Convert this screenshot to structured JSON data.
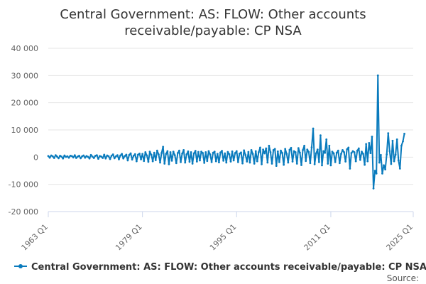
{
  "chart_data": {
    "type": "line",
    "title_lines": [
      "Central Government: AS: FLOW: Other accounts",
      "receivable/payable: CP NSA"
    ],
    "xlabel": "",
    "ylabel": "",
    "x_tick_labels": [
      "1963 Q1",
      "1979 Q1",
      "1995 Q1",
      "2011 Q1",
      "2025 Q1"
    ],
    "x_ticks_quarter_index": [
      0,
      64,
      128,
      192,
      248
    ],
    "y_tick_labels": [
      "40 000",
      "30 000",
      "20 000",
      "10 000",
      "0",
      "-10 000",
      "-20 000"
    ],
    "y_ticks": [
      40000,
      30000,
      20000,
      10000,
      0,
      -10000,
      -20000
    ],
    "ylim": [
      -20000,
      40000
    ],
    "x_range_quarter_index": [
      0,
      248
    ],
    "grid": "horizontal",
    "legend_placement": "bottom",
    "series": [
      {
        "name": "Central Government: AS: FLOW: Other accounts receivable/payable: CP NSA",
        "color": "#0a7bbd",
        "values": [
          400,
          -200,
          600,
          300,
          -300,
          700,
          200,
          -400,
          500,
          200,
          -500,
          600,
          100,
          300,
          -200,
          500,
          400,
          -100,
          700,
          -300,
          200,
          500,
          -400,
          300,
          600,
          -200,
          400,
          100,
          -500,
          800,
          200,
          -300,
          500,
          700,
          -600,
          400,
          200,
          -300,
          900,
          -500,
          600,
          300,
          -700,
          500,
          1000,
          -400,
          300,
          700,
          -800,
          600,
          1200,
          -500,
          400,
          900,
          -1200,
          800,
          1400,
          -900,
          500,
          1100,
          -1500,
          900,
          1300,
          -800,
          1200,
          -1400,
          1800,
          600,
          -1700,
          2000,
          900,
          -1500,
          1600,
          -1100,
          2400,
          1000,
          -2000,
          1500,
          3800,
          -2400,
          1200,
          2200,
          -2600,
          1800,
          -1300,
          2000,
          700,
          -2200,
          1500,
          2400,
          -1800,
          1300,
          2600,
          -2000,
          1000,
          2100,
          -1700,
          1800,
          -2400,
          1400,
          2300,
          -1600,
          1900,
          -1200,
          2000,
          1500,
          -2100,
          1800,
          -1400,
          2200,
          1000,
          -1800,
          1600,
          2000,
          -1500,
          1200,
          -1900,
          1700,
          2300,
          -1300,
          1400,
          -2000,
          1900,
          1100,
          -1600,
          2100,
          -1200,
          1500,
          2200,
          -1800,
          1300,
          1700,
          -2300,
          2500,
          800,
          -1600,
          1900,
          -2000,
          2600,
          1200,
          -2400,
          2200,
          -1500,
          1800,
          3500,
          -2600,
          2800,
          1400,
          3200,
          -2000,
          4200,
          1800,
          -2400,
          2600,
          3000,
          -3200,
          2100,
          -1800,
          2400,
          1500,
          -2800,
          3000,
          1200,
          -2000,
          2700,
          3400,
          -1600,
          2200,
          1800,
          -2400,
          3300,
          1600,
          -2900,
          2600,
          4200,
          -1400,
          2800,
          1900,
          -2200,
          3600,
          10500,
          -2600,
          1400,
          2800,
          -1800,
          8000,
          -3000,
          2200,
          1600,
          6500,
          -2400,
          4200,
          -3000,
          2000,
          1400,
          -1800,
          1600,
          2400,
          -2200,
          1200,
          2600,
          1800,
          -1600,
          2900,
          3500,
          -4200,
          1500,
          2200,
          1800,
          -1500,
          2400,
          3200,
          -1000,
          2000,
          1200,
          -2800,
          4800,
          -1500,
          5200,
          1500,
          7500,
          -11500,
          -5000,
          -6000,
          30000,
          -2000,
          800,
          -6000,
          -3000,
          -4500,
          1000,
          8800,
          2200,
          -2500,
          6000,
          -1500,
          900,
          6500,
          -1200,
          -4200,
          4200,
          5800,
          8600
        ]
      }
    ],
    "source_label": "Source:"
  }
}
